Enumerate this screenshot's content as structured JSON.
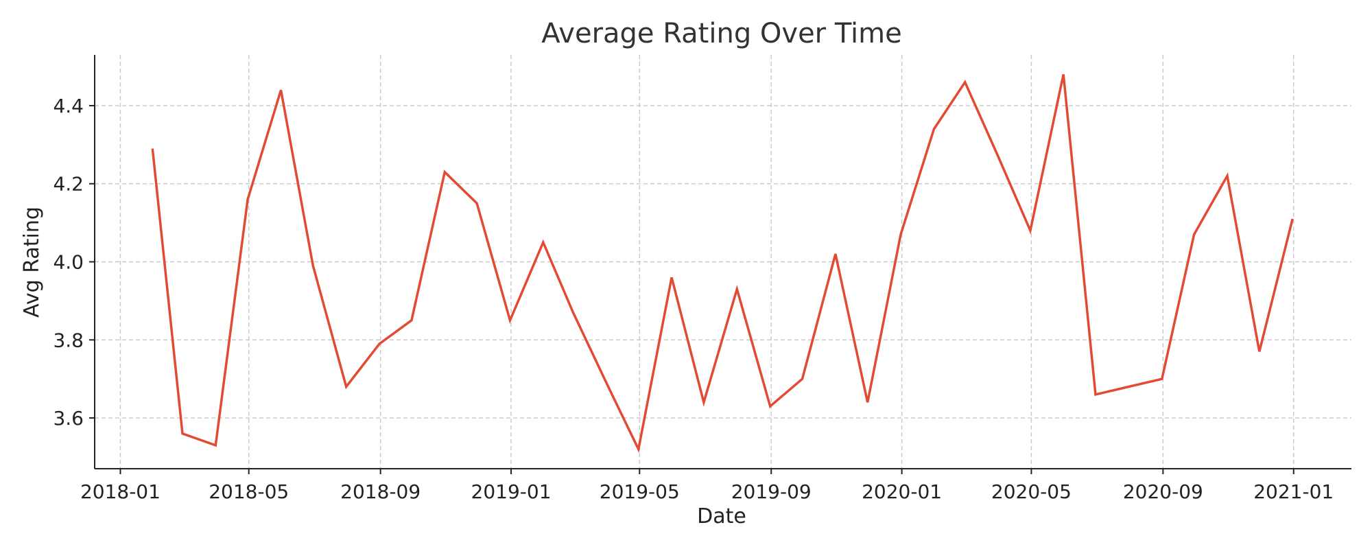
{
  "chart_data": {
    "type": "line",
    "title": "Average Rating Over Time",
    "xlabel": "Date",
    "ylabel": "Avg Rating",
    "x_ticks": [
      "2018-01",
      "2018-05",
      "2018-09",
      "2019-01",
      "2019-05",
      "2019-09",
      "2020-01",
      "2020-05",
      "2020-09",
      "2021-01"
    ],
    "y_ticks": [
      "3.6",
      "3.8",
      "4.0",
      "4.2",
      "4.4"
    ],
    "ylim": [
      3.47,
      4.53
    ],
    "xlim": [
      "2017-12-08",
      "2021-02-24"
    ],
    "grid": true,
    "color": "#e24a33",
    "series": [
      {
        "x": [
          "2018-01-31",
          "2018-02-28",
          "2018-03-31",
          "2018-04-30",
          "2018-05-31",
          "2018-06-30",
          "2018-07-31",
          "2018-08-31",
          "2018-09-30",
          "2018-10-31",
          "2018-11-30",
          "2018-12-31",
          "2019-01-31",
          "2019-02-28",
          "2019-03-31",
          "2019-04-30",
          "2019-05-31",
          "2019-06-30",
          "2019-07-31",
          "2019-08-31",
          "2019-09-30",
          "2019-10-31",
          "2019-11-30",
          "2019-12-31",
          "2020-01-31",
          "2020-02-29",
          "2020-03-31",
          "2020-04-30",
          "2020-05-31",
          "2020-06-30",
          "2020-07-31",
          "2020-08-31",
          "2020-09-30",
          "2020-10-31",
          "2020-11-30",
          "2020-12-31"
        ],
        "values": [
          4.29,
          3.56,
          3.53,
          4.16,
          4.44,
          3.99,
          3.68,
          3.79,
          3.85,
          4.23,
          4.15,
          3.85,
          4.05,
          3.87,
          3.69,
          3.52,
          3.96,
          3.64,
          3.93,
          3.63,
          3.7,
          4.02,
          3.64,
          4.07,
          4.34,
          4.46,
          4.27,
          4.08,
          4.48,
          3.66,
          3.68,
          3.7,
          4.07,
          4.22,
          3.77,
          4.11
        ]
      }
    ]
  }
}
